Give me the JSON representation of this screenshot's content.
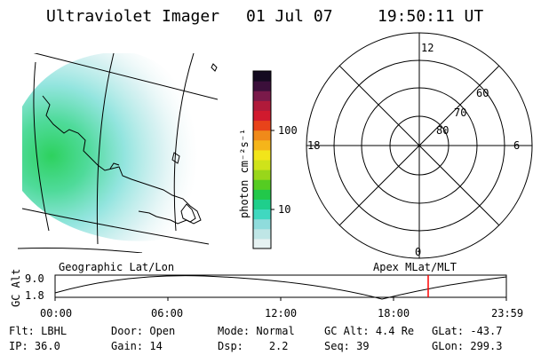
{
  "header": {
    "instrument": "Ultraviolet Imager",
    "date": "01 Jul 07",
    "time": "19:50:11 UT"
  },
  "colorbar": {
    "label": "photon cm⁻²s⁻¹",
    "ticks": [
      "100",
      "10"
    ],
    "scale": "log",
    "colors": [
      "#e6f2f2",
      "#bfe6e6",
      "#8fdcdc",
      "#40d8c0",
      "#1fcf8c",
      "#22c84a",
      "#55cc22",
      "#99d61a",
      "#cfe31a",
      "#f2e51a",
      "#f5b51a",
      "#f08a1a",
      "#e8431a",
      "#d11a2e",
      "#b01a3a",
      "#7a1a4a",
      "#3b0f3a",
      "#140a20"
    ]
  },
  "polar_plot": {
    "mlt_labels": [
      "12",
      "18",
      "6",
      "0"
    ],
    "lat_labels": [
      "60",
      "70",
      "80"
    ]
  },
  "timeline": {
    "left_label": "Geographic Lat/Lon",
    "right_label": "Apex MLat/MLT",
    "axis_title": "GC Alt",
    "y_ticks": [
      "9.0",
      "1.8"
    ],
    "x_ticks": [
      "00:00",
      "06:00",
      "12:00",
      "18:00",
      "23:59"
    ],
    "current_marker_color": "#ff0000"
  },
  "status": {
    "row1": [
      {
        "label": "Flt:",
        "value": "LBHL"
      },
      {
        "label": "Door:",
        "value": "Open"
      },
      {
        "label": "Mode:",
        "value": "Normal"
      },
      {
        "label": "GC Alt:",
        "value": "4.4 Re"
      },
      {
        "label": "GLat:",
        "value": "-43.7"
      }
    ],
    "row2": [
      {
        "label": "IP:",
        "value": "36.0"
      },
      {
        "label": "Gain:",
        "value": "14"
      },
      {
        "label": "Dsp:",
        "value": "2.2"
      },
      {
        "label": "Seq:",
        "value": "39"
      },
      {
        "label": "GLon:",
        "value": "299.3"
      }
    ]
  }
}
